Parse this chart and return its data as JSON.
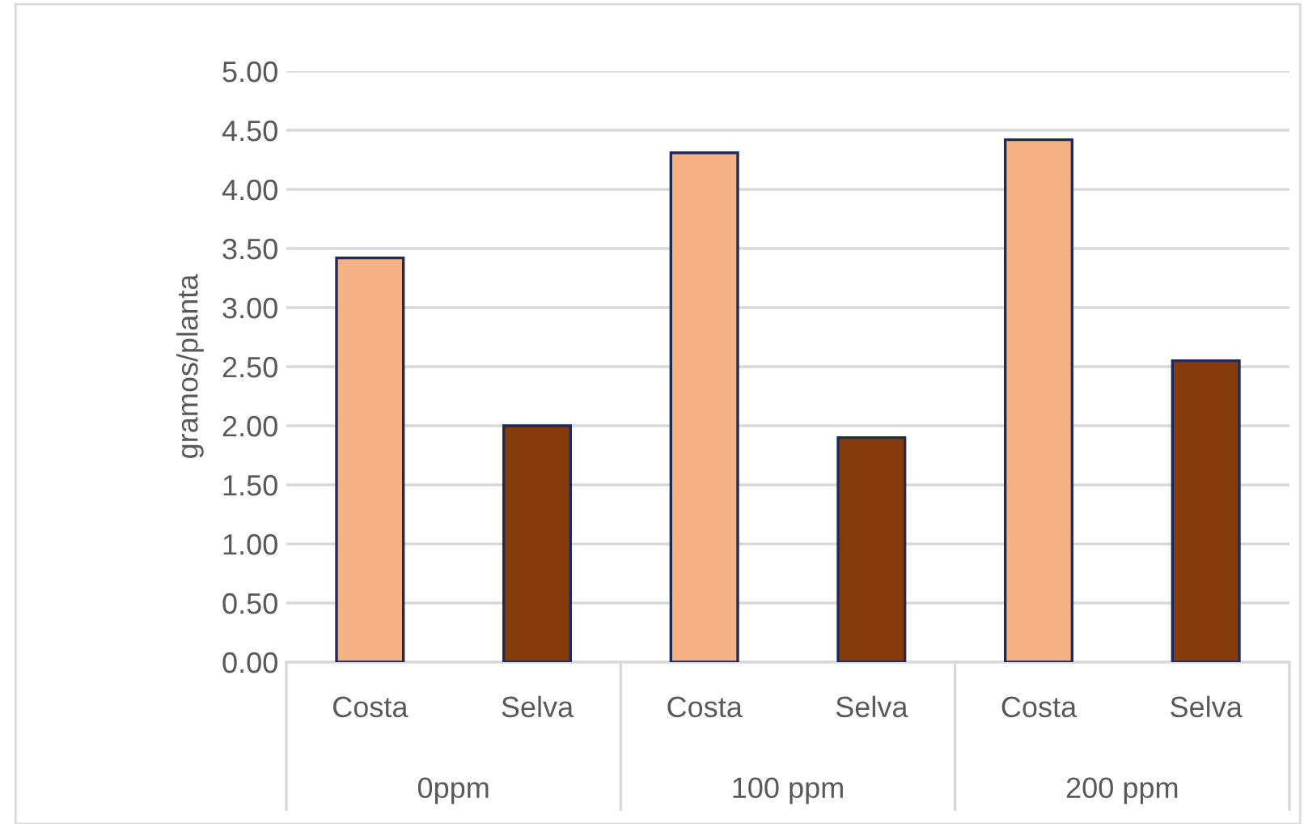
{
  "chart_data": {
    "type": "bar",
    "ylabel": "gramos/planta",
    "categories": [
      "Costa",
      "Selva",
      "Costa",
      "Selva",
      "Costa",
      "Selva"
    ],
    "values": [
      3.42,
      2.0,
      4.31,
      1.9,
      4.42,
      2.55
    ],
    "colors": [
      "#f4b183",
      "#843c0c",
      "#f4b183",
      "#843c0c",
      "#f4b183",
      "#843c0c"
    ],
    "annotations": [
      "0ppm",
      "100 ppm",
      "200 ppm"
    ],
    "ylim": [
      0,
      5
    ],
    "yticks": [
      {
        "value": 0,
        "label": "0.00"
      },
      {
        "value": 0.5,
        "label": "0.50"
      },
      {
        "value": 1,
        "label": "1.00"
      },
      {
        "value": 1.5,
        "label": "1.50"
      },
      {
        "value": 2,
        "label": "2.00"
      },
      {
        "value": 2.5,
        "label": "2.50"
      },
      {
        "value": 3,
        "label": "3.00"
      },
      {
        "value": 3.5,
        "label": "3.50"
      },
      {
        "value": 4,
        "label": "4.00"
      },
      {
        "value": 4.5,
        "label": "4.50"
      },
      {
        "value": 5,
        "label": "5.00"
      }
    ],
    "grid": "y"
  }
}
